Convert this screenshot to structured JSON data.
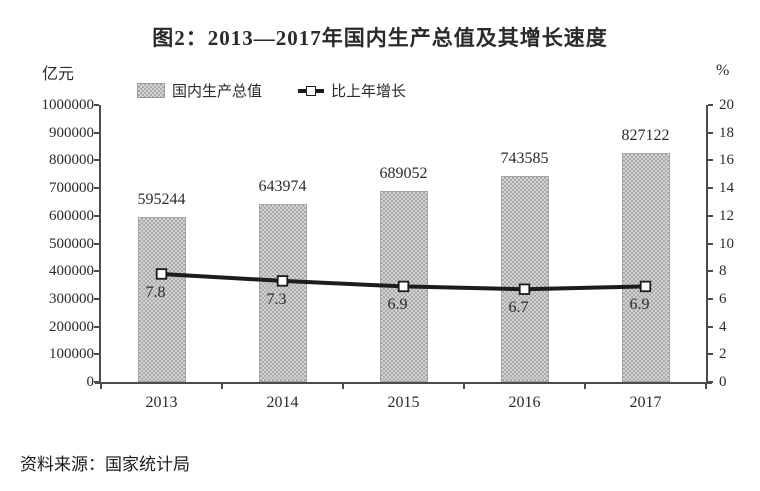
{
  "title": "图2：2013—2017年国内生产总值及其增长速度",
  "source": "资料来源：国家统计局",
  "chart_data": {
    "type": "bar+line",
    "categories": [
      "2013",
      "2014",
      "2015",
      "2016",
      "2017"
    ],
    "series": [
      {
        "name": "国内生产总值",
        "type": "bar",
        "axis": "left",
        "values": [
          595244,
          643974,
          689052,
          743585,
          827122
        ]
      },
      {
        "name": "比上年增长",
        "type": "line",
        "axis": "right",
        "values": [
          7.8,
          7.3,
          6.9,
          6.7,
          6.9
        ]
      }
    ],
    "left_axis": {
      "label": "亿元",
      "min": 0,
      "max": 1000000,
      "step": 100000
    },
    "right_axis": {
      "label": "%",
      "min": 0,
      "max": 20,
      "step": 2
    },
    "legend_position": "top",
    "grid": false,
    "data_labels": true,
    "colors": {
      "bar_fill_light": "#d2d2d2",
      "bar_fill_dark": "#ababab",
      "bar_border": "#a3a3a3",
      "line": "#1c1c1c",
      "marker_fill": "#ffffff",
      "axis": "#4c4c4c",
      "text": "#2e2929"
    }
  }
}
